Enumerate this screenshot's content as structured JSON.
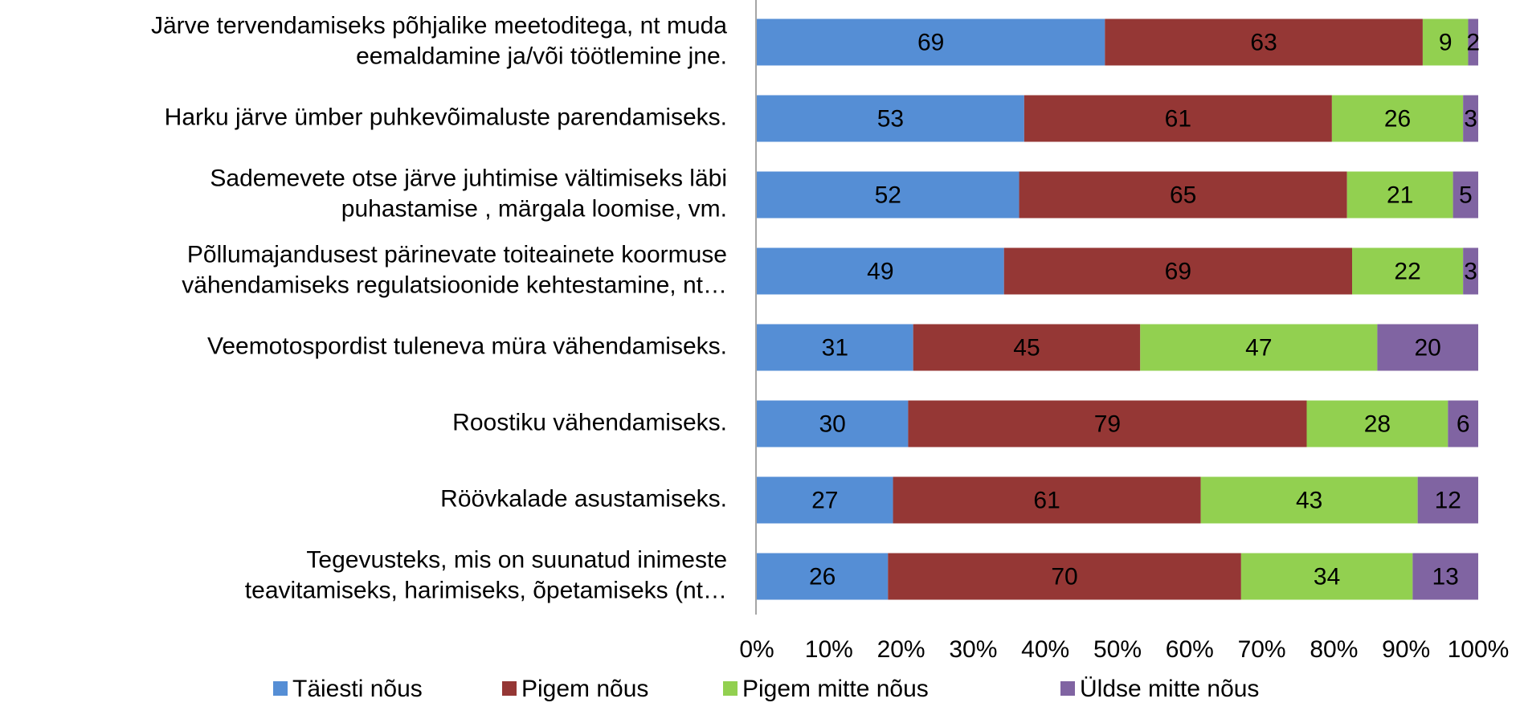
{
  "chart_data": {
    "type": "stacked_bar_100",
    "categories": [
      [
        "Järve tervendamiseks põhjalike meetoditega, nt muda",
        "eemaldamine ja/või töötlemine jne."
      ],
      [
        "Harku järve ümber puhkevõimaluste  parendamiseks."
      ],
      [
        "Sademevete otse järve juhtimise vältimiseks läbi",
        "puhastamise , märgala loomise, vm."
      ],
      [
        "Põllumajandusest pärinevate toiteainete koormuse",
        "vähendamiseks regulatsioonide kehtestamine, nt…"
      ],
      [
        "Veemotospordist tuleneva müra vähendamiseks."
      ],
      [
        "Roostiku vähendamiseks."
      ],
      [
        "Röövkalade asustamiseks."
      ],
      [
        "Tegevusteks, mis on suunatud inimeste",
        "teavitamiseks, harimiseks, õpetamiseks (nt…"
      ]
    ],
    "series": [
      {
        "name": "Täiesti nõus",
        "color": "#558ed5",
        "values": [
          69,
          53,
          52,
          49,
          31,
          30,
          27,
          26
        ]
      },
      {
        "name": "Pigem nõus",
        "color": "#953735",
        "values": [
          63,
          61,
          65,
          69,
          45,
          79,
          61,
          70
        ]
      },
      {
        "name": "Pigem mitte nõus",
        "color": "#92d050",
        "values": [
          9,
          26,
          21,
          22,
          47,
          28,
          43,
          34
        ]
      },
      {
        "name": "Üldse mitte nõus",
        "color": "#8064a2",
        "values": [
          2,
          3,
          5,
          3,
          20,
          6,
          12,
          13
        ]
      }
    ],
    "xlim": [
      0,
      100
    ],
    "xticks": [
      {
        "value": 0,
        "label": "0%"
      },
      {
        "value": 10,
        "label": "10%"
      },
      {
        "value": 20,
        "label": "20%"
      },
      {
        "value": 30,
        "label": "30%"
      },
      {
        "value": 40,
        "label": "40%"
      },
      {
        "value": 50,
        "label": "50%"
      },
      {
        "value": 60,
        "label": "60%"
      },
      {
        "value": 70,
        "label": "70%"
      },
      {
        "value": 80,
        "label": "80%"
      },
      {
        "value": 90,
        "label": "90%"
      },
      {
        "value": 100,
        "label": "100%"
      }
    ],
    "legend": "bottom"
  }
}
